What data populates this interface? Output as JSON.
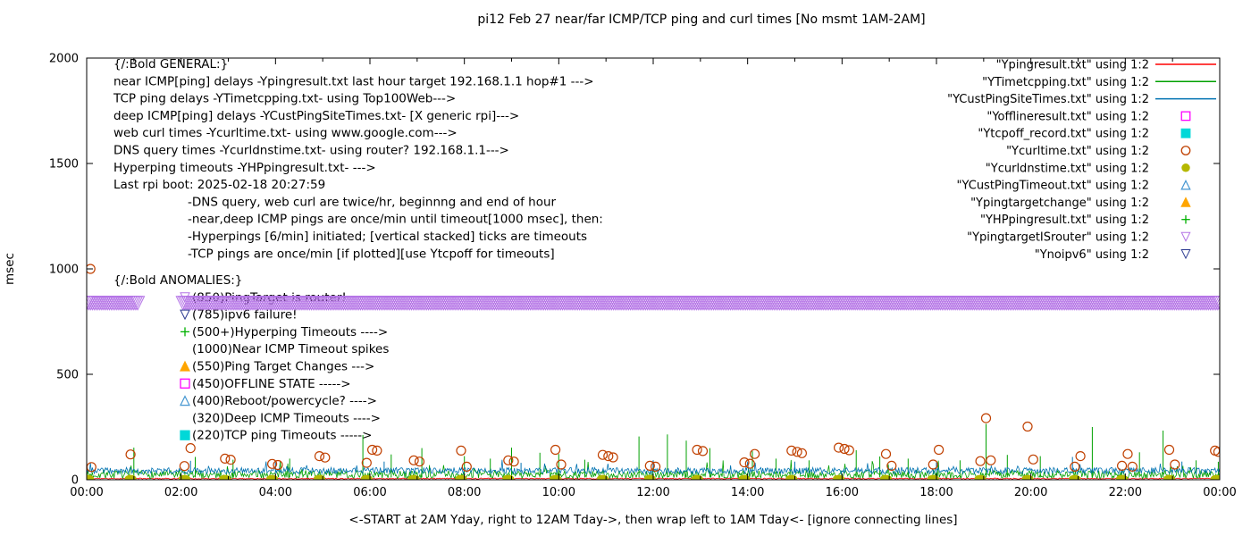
{
  "chart": {
    "title": "pi12 Feb 27  near/far ICMP/TCP ping and curl times [No msmt 1AM-2AM]",
    "xlabel": "<-START at 2AM Yday, right to 12AM Tday->, then wrap left to 1AM Tday<- [ignore connecting lines]",
    "ylabel": "msec"
  },
  "chart_data": {
    "type": "line",
    "x_range": [
      0,
      24
    ],
    "y_range": [
      0,
      2000
    ],
    "grid": false,
    "legend_position": "top-right",
    "x_ticks": [
      {
        "v": 0,
        "label": "00:00"
      },
      {
        "v": 2,
        "label": "02:00"
      },
      {
        "v": 4,
        "label": "04:00"
      },
      {
        "v": 6,
        "label": "06:00"
      },
      {
        "v": 8,
        "label": "08:00"
      },
      {
        "v": 10,
        "label": "10:00"
      },
      {
        "v": 12,
        "label": "12:00"
      },
      {
        "v": 14,
        "label": "14:00"
      },
      {
        "v": 16,
        "label": "16:00"
      },
      {
        "v": 18,
        "label": "18:00"
      },
      {
        "v": 20,
        "label": "20:00"
      },
      {
        "v": 22,
        "label": "22:00"
      },
      {
        "v": 24,
        "label": "00:00"
      }
    ],
    "y_ticks": [
      0,
      500,
      1000,
      1500,
      2000
    ],
    "legend": [
      {
        "label": "\"Ypingresult.txt\" using 1:2",
        "type": "line",
        "color": "#ff0000"
      },
      {
        "label": "\"YTimetcpping.txt\" using 1:2",
        "type": "line",
        "color": "#00a000"
      },
      {
        "label": "\"YCustPingSiteTimes.txt\" using 1:2",
        "type": "line",
        "color": "#0072b2"
      },
      {
        "label": "\"Yofflineresult.txt\" using 1:2",
        "type": "square",
        "color": "#ff00ff",
        "filled": false
      },
      {
        "label": "\"Ytcpoff_record.txt\" using 1:2",
        "type": "square",
        "color": "#00d8d8",
        "filled": true
      },
      {
        "label": "\"Ycurltime.txt\" using 1:2",
        "type": "circle",
        "color": "#c04000",
        "filled": false
      },
      {
        "label": "\"Ycurldnstime.txt\" using 1:2",
        "type": "circle",
        "color": "#b5b800",
        "filled": true
      },
      {
        "label": "\"YCustPingTimeout.txt\" using 1:2",
        "type": "triangle-up",
        "color": "#4596d1",
        "filled": false
      },
      {
        "label": "\"Ypingtargetchange\" using 1:2",
        "type": "triangle-up",
        "color": "#ffa500",
        "filled": true
      },
      {
        "label": "\"YHPpingresult.txt\" using 1:2",
        "type": "plus",
        "color": "#00b000"
      },
      {
        "label": "\"YpingtargetISrouter\" using 1:2",
        "type": "triangle-down",
        "color": "#b473e6",
        "filled": false
      },
      {
        "label": "\"Ynoipv6\" using 1:2",
        "type": "triangle-down",
        "color": "#2b3990",
        "filled": false
      }
    ],
    "series": {
      "near_icmp": {
        "name": "Ypingresult.txt",
        "color": "#ff0000",
        "base": 3,
        "noise": 5,
        "burst_p": 0,
        "burst_h": 0,
        "seed": 11,
        "spikes": []
      },
      "tcp_ping": {
        "name": "YTimetcpping.txt",
        "color": "#00a000",
        "base": 6,
        "noise": 38,
        "burst_p": 0.04,
        "burst_h": 60,
        "seed": 7,
        "spikes": [
          [
            1.0,
            152
          ],
          [
            2.3,
            108
          ],
          [
            3.1,
            95
          ],
          [
            4.3,
            100
          ],
          [
            5.85,
            212
          ],
          [
            6.45,
            120
          ],
          [
            7.1,
            150
          ],
          [
            8.0,
            112
          ],
          [
            8.55,
            100
          ],
          [
            9.0,
            152
          ],
          [
            9.6,
            128
          ],
          [
            10.0,
            122
          ],
          [
            10.55,
            95
          ],
          [
            11.7,
            205
          ],
          [
            12.3,
            215
          ],
          [
            12.7,
            185
          ],
          [
            13.2,
            150
          ],
          [
            14.1,
            135
          ],
          [
            14.6,
            100
          ],
          [
            15.3,
            92
          ],
          [
            16.3,
            140
          ],
          [
            16.8,
            110
          ],
          [
            17.4,
            100
          ],
          [
            18.5,
            92
          ],
          [
            19.05,
            265
          ],
          [
            19.5,
            118
          ],
          [
            20.2,
            112
          ],
          [
            21.3,
            250
          ],
          [
            22.3,
            130
          ],
          [
            22.8,
            233
          ],
          [
            23.5,
            92
          ],
          [
            23.97,
            85
          ]
        ]
      },
      "deep_icmp": {
        "name": "YCustPingSiteTimes.txt",
        "color": "#0072b2",
        "base": 28,
        "noise": 30,
        "burst_p": 0.02,
        "burst_h": 40,
        "seed": 23,
        "spikes": [
          [
            2.2,
            90
          ],
          [
            4.0,
            82
          ],
          [
            6.3,
            86
          ],
          [
            9.2,
            80
          ],
          [
            12.0,
            92
          ],
          [
            15.0,
            86
          ],
          [
            18.0,
            82
          ],
          [
            20.88,
            108
          ],
          [
            23.2,
            86
          ]
        ]
      },
      "curl": {
        "name": "Ycurltime.txt",
        "color": "#c04000",
        "points": [
          [
            0.08,
            1000
          ],
          [
            0.1,
            60
          ],
          [
            0.93,
            120
          ],
          [
            2.07,
            65
          ],
          [
            2.2,
            150
          ],
          [
            2.93,
            100
          ],
          [
            3.05,
            95
          ],
          [
            3.93,
            75
          ],
          [
            4.05,
            70
          ],
          [
            4.93,
            112
          ],
          [
            5.05,
            105
          ],
          [
            5.93,
            80
          ],
          [
            6.05,
            142
          ],
          [
            6.15,
            138
          ],
          [
            6.93,
            92
          ],
          [
            7.05,
            86
          ],
          [
            7.93,
            138
          ],
          [
            8.05,
            62
          ],
          [
            8.93,
            92
          ],
          [
            9.05,
            86
          ],
          [
            9.93,
            142
          ],
          [
            10.05,
            72
          ],
          [
            10.93,
            118
          ],
          [
            11.05,
            112
          ],
          [
            11.15,
            106
          ],
          [
            11.93,
            66
          ],
          [
            12.05,
            62
          ],
          [
            12.93,
            142
          ],
          [
            13.05,
            136
          ],
          [
            13.93,
            82
          ],
          [
            14.05,
            76
          ],
          [
            14.15,
            122
          ],
          [
            14.93,
            138
          ],
          [
            15.05,
            132
          ],
          [
            15.15,
            126
          ],
          [
            15.93,
            152
          ],
          [
            16.05,
            146
          ],
          [
            16.15,
            140
          ],
          [
            16.93,
            122
          ],
          [
            17.05,
            66
          ],
          [
            17.93,
            72
          ],
          [
            18.05,
            142
          ],
          [
            18.93,
            88
          ],
          [
            19.05,
            292
          ],
          [
            19.15,
            92
          ],
          [
            19.93,
            252
          ],
          [
            20.05,
            96
          ],
          [
            20.93,
            62
          ],
          [
            21.05,
            112
          ],
          [
            21.93,
            66
          ],
          [
            22.05,
            122
          ],
          [
            22.15,
            62
          ],
          [
            22.93,
            142
          ],
          [
            23.05,
            72
          ],
          [
            23.9,
            138
          ],
          [
            23.97,
            132
          ]
        ]
      },
      "dns": {
        "name": "Ycurldnstime.txt",
        "color": "#b5b800",
        "y": 6,
        "x": [
          0.03,
          0.93,
          2.07,
          2.93,
          3.93,
          4.93,
          5.93,
          6.93,
          7.93,
          8.93,
          9.93,
          10.93,
          11.93,
          12.93,
          13.93,
          14.93,
          15.93,
          16.93,
          17.93,
          18.93,
          19.93,
          20.93,
          21.93,
          22.93,
          23.93
        ]
      },
      "router_band": {
        "name": "YpingtargetISrouter",
        "color": "#b473e6",
        "y": 838,
        "spacing": 0.04,
        "size": 15,
        "segments": [
          [
            0.0,
            1.08
          ],
          [
            2.04,
            24.0
          ]
        ]
      }
    },
    "annotations": {
      "general_header": "{/:Bold GENERAL:}",
      "general_lines": [
        "near ICMP[ping] delays -Ypingresult.txt last hour target 192.168.1.1 hop#1 --->",
        "TCP ping delays -YTimetcpping.txt- using Top100Web--->",
        "deep ICMP[ping] delays -YCustPingSiteTimes.txt- [X generic rpi]--->",
        "web curl times -Ycurltime.txt- using www.google.com--->",
        "DNS query times -Ycurldnstime.txt- using router? 192.168.1.1--->",
        "Hyperping timeouts -YHPpingresult.txt- --->",
        "Last rpi boot: 2025-02-18 20:27:59"
      ],
      "general_indent_lines": [
        "-DNS query, web curl are twice/hr, beginnng and end of hour",
        "-near,deep ICMP pings are once/min until timeout[1000 msec], then:",
        " -Hyperpings [6/min] initiated; [vertical stacked] ticks are timeouts",
        "-TCP pings are once/min [if plotted][use Ytcpoff for timeouts]"
      ],
      "anomalies_header": "{/:Bold ANOMALIES:}",
      "anomalies": [
        {
          "text": "(850)PingTarget is router!",
          "marker": "triangle-down",
          "color": "#b473e6",
          "filled": false
        },
        {
          "text": "(785)ipv6 failure!",
          "marker": "triangle-down",
          "color": "#2b3990",
          "filled": false
        },
        {
          "text": "(500+)Hyperping Timeouts ---->",
          "marker": "plus",
          "color": "#00b000"
        },
        {
          "text": "(1000)Near ICMP Timeout spikes",
          "marker": null
        },
        {
          "text": "(550)Ping Target Changes --->",
          "marker": "triangle-up",
          "color": "#ffa500",
          "filled": true
        },
        {
          "text": "(450)OFFLINE STATE ----->",
          "marker": "square",
          "color": "#ff00ff",
          "filled": false
        },
        {
          "text": "(400)Reboot/powercycle? ---->",
          "marker": "triangle-up",
          "color": "#4596d1",
          "filled": false
        },
        {
          "text": "(320)Deep ICMP Timeouts ---->",
          "marker": null
        },
        {
          "text": "(220)TCP ping Timeouts ----->",
          "marker": "square",
          "color": "#00d8d8",
          "filled": true
        }
      ]
    }
  }
}
